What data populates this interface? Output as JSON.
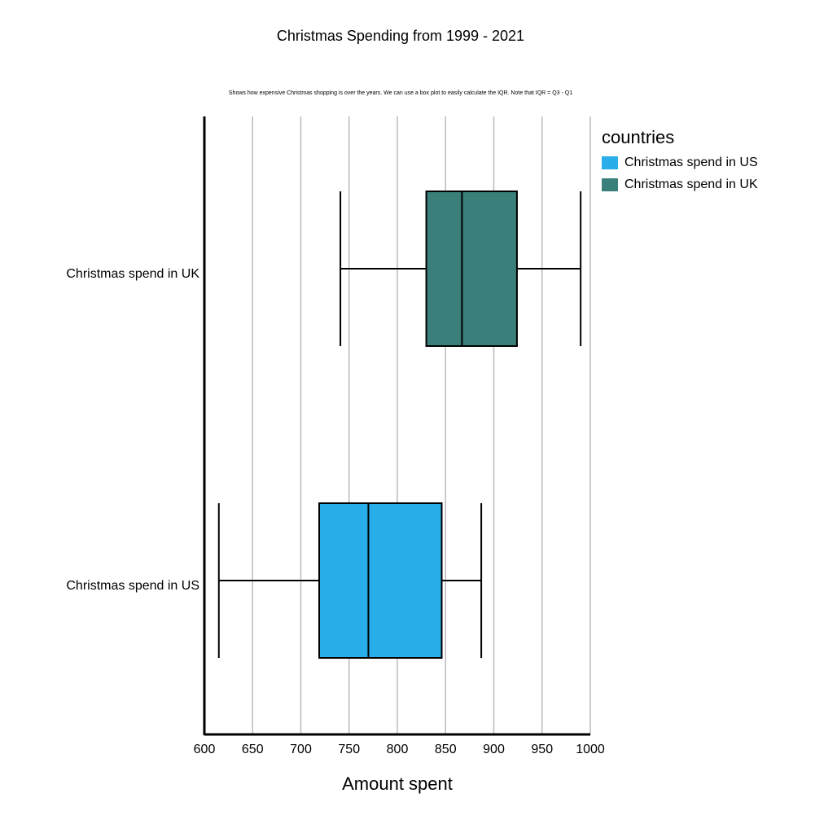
{
  "chart_data": {
    "type": "boxplot",
    "orientation": "horizontal",
    "title": "Christmas Spending from 1999 - 2021",
    "subtitle": "Shows how expensive Christmas shopping is over the years. We can use a box plot to easily calculate the IQR. Note that IQR = Q3 - Q1",
    "xlabel": "Amount spent",
    "ylabel": "",
    "xlim": [
      600,
      1000
    ],
    "xticks": [
      600,
      650,
      700,
      750,
      800,
      850,
      900,
      950,
      1000
    ],
    "grid": "vertical",
    "legend": {
      "title": "countries",
      "placement": "top-right",
      "entries": [
        "Christmas spend in US",
        "Christmas spend in UK"
      ]
    },
    "series": [
      {
        "name": "Christmas spend in UK",
        "color": "#3a7f7a",
        "min": 741,
        "q1": 830,
        "median": 867,
        "q3": 924,
        "max": 990
      },
      {
        "name": "Christmas spend in US",
        "color": "#2aaeea",
        "min": 615,
        "q1": 719,
        "median": 770,
        "q3": 846,
        "max": 887
      }
    ]
  }
}
